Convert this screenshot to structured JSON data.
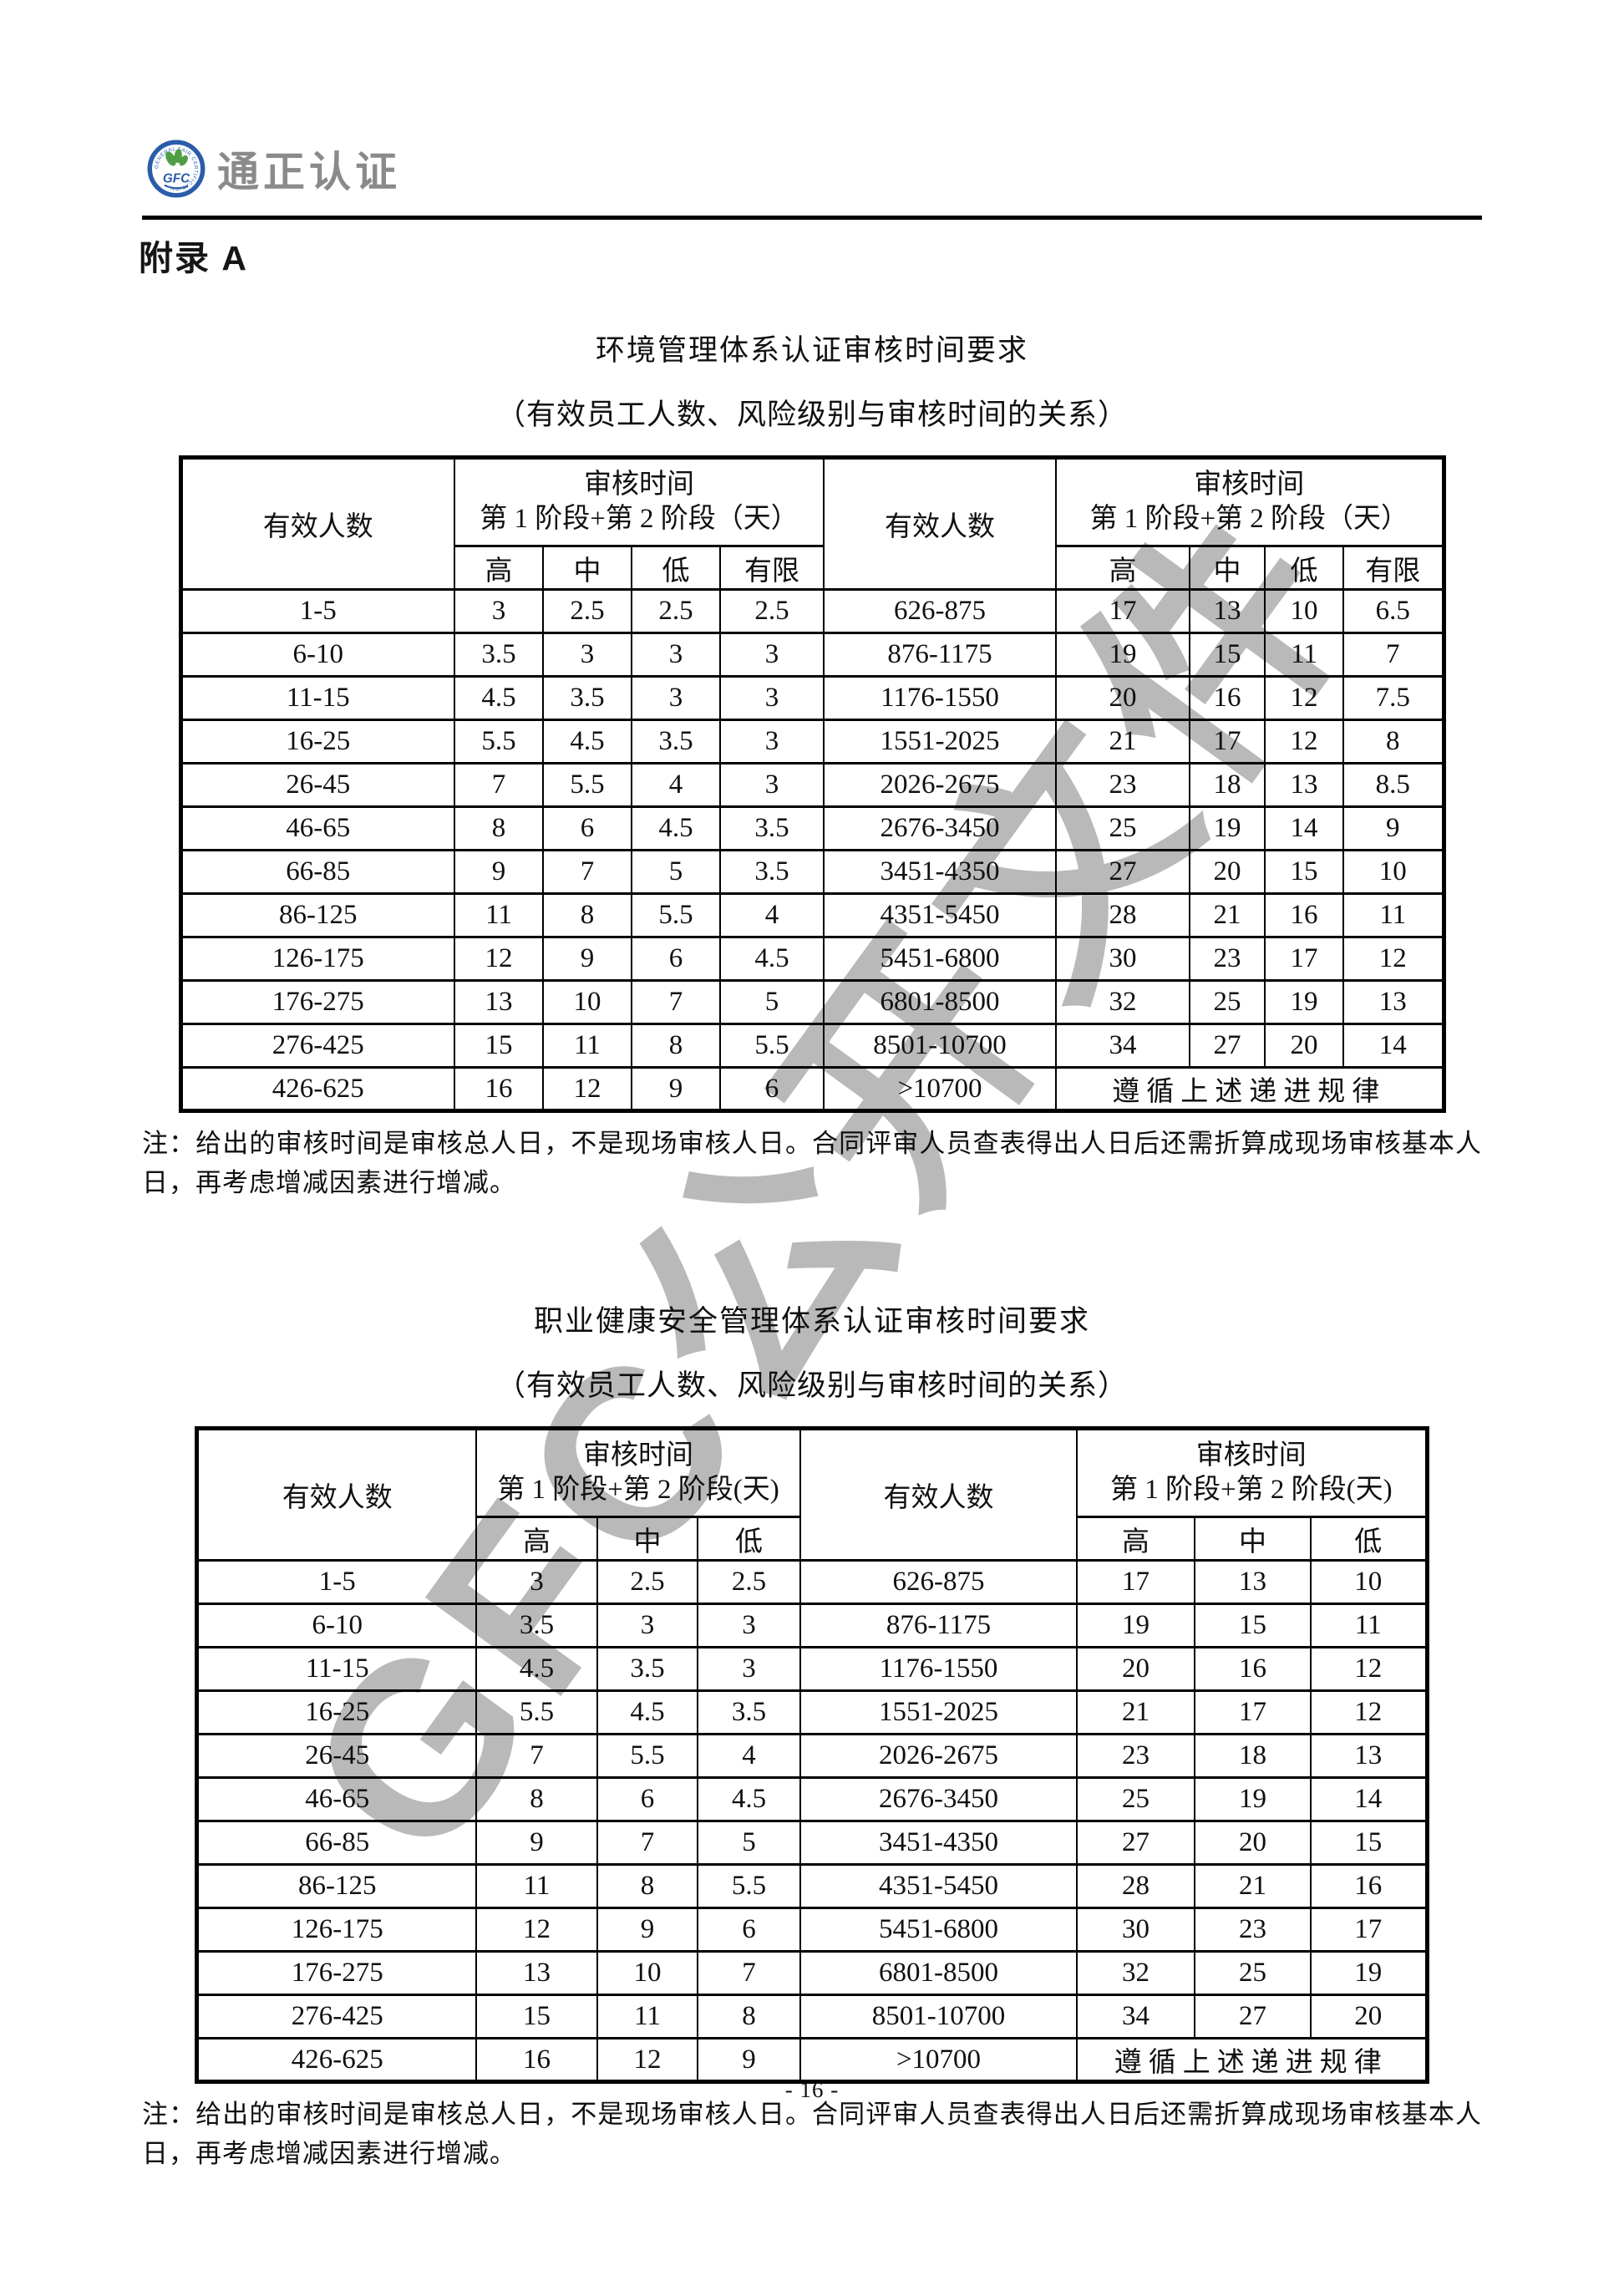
{
  "page": {
    "appendix_heading": "附录 A",
    "page_number": "- 16 -"
  },
  "logo": {
    "brand_text": "通正认证",
    "ring_text": "GENERAL FAIR CERTIFICATION",
    "monogram": "GFC",
    "ring_color": "#2a5caa",
    "leaf_color": "#4f9e45",
    "brand_color": "#8a8a8a"
  },
  "watermark": {
    "text": "GFC公开文件"
  },
  "tables": [
    {
      "title": "环境管理体系认证审核时间要求",
      "subtitle": "（有效员工人数、风险级别与审核时间的关系）",
      "people_header": "有效人数",
      "audit_header_line1": "审核时间",
      "audit_header_line2": "第 1 阶段+第 2 阶段（天）",
      "levels": [
        "高",
        "中",
        "低",
        "有限"
      ],
      "left_rows": [
        {
          "range": "1-5",
          "values": [
            "3",
            "2.5",
            "2.5",
            "2.5"
          ]
        },
        {
          "range": "6-10",
          "values": [
            "3.5",
            "3",
            "3",
            "3"
          ]
        },
        {
          "range": "11-15",
          "values": [
            "4.5",
            "3.5",
            "3",
            "3"
          ]
        },
        {
          "range": "16-25",
          "values": [
            "5.5",
            "4.5",
            "3.5",
            "3"
          ]
        },
        {
          "range": "26-45",
          "values": [
            "7",
            "5.5",
            "4",
            "3"
          ]
        },
        {
          "range": "46-65",
          "values": [
            "8",
            "6",
            "4.5",
            "3.5"
          ]
        },
        {
          "range": "66-85",
          "values": [
            "9",
            "7",
            "5",
            "3.5"
          ]
        },
        {
          "range": "86-125",
          "values": [
            "11",
            "8",
            "5.5",
            "4"
          ]
        },
        {
          "range": "126-175",
          "values": [
            "12",
            "9",
            "6",
            "4.5"
          ]
        },
        {
          "range": "176-275",
          "values": [
            "13",
            "10",
            "7",
            "5"
          ]
        },
        {
          "range": "276-425",
          "values": [
            "15",
            "11",
            "8",
            "5.5"
          ]
        },
        {
          "range": "426-625",
          "values": [
            "16",
            "12",
            "9",
            "6"
          ]
        }
      ],
      "right_rows": [
        {
          "range": "626-875",
          "values": [
            "17",
            "13",
            "10",
            "6.5"
          ]
        },
        {
          "range": "876-1175",
          "values": [
            "19",
            "15",
            "11",
            "7"
          ]
        },
        {
          "range": "1176-1550",
          "values": [
            "20",
            "16",
            "12",
            "7.5"
          ]
        },
        {
          "range": "1551-2025",
          "values": [
            "21",
            "17",
            "12",
            "8"
          ]
        },
        {
          "range": "2026-2675",
          "values": [
            "23",
            "18",
            "13",
            "8.5"
          ]
        },
        {
          "range": "2676-3450",
          "values": [
            "25",
            "19",
            "14",
            "9"
          ]
        },
        {
          "range": "3451-4350",
          "values": [
            "27",
            "20",
            "15",
            "10"
          ]
        },
        {
          "range": "4351-5450",
          "values": [
            "28",
            "21",
            "16",
            "11"
          ]
        },
        {
          "range": "5451-6800",
          "values": [
            "30",
            "23",
            "17",
            "12"
          ]
        },
        {
          "range": "6801-8500",
          "values": [
            "32",
            "25",
            "19",
            "13"
          ]
        },
        {
          "range": "8501-10700",
          "values": [
            "34",
            "27",
            "20",
            "14"
          ]
        },
        {
          "range": ">10700",
          "span_text": "遵循上述递进规律"
        }
      ],
      "note": "注：给出的审核时间是审核总人日，不是现场审核人日。合同评审人员查表得出人日后还需折算成现场审核基本人日，再考虑增减因素进行增减。"
    },
    {
      "title": "职业健康安全管理体系认证审核时间要求",
      "subtitle": "（有效员工人数、风险级别与审核时间的关系）",
      "people_header": "有效人数",
      "audit_header_line1": "审核时间",
      "audit_header_line2": "第 1 阶段+第 2 阶段(天)",
      "levels": [
        "高",
        "中",
        "低"
      ],
      "left_rows": [
        {
          "range": "1-5",
          "values": [
            "3",
            "2.5",
            "2.5"
          ]
        },
        {
          "range": "6-10",
          "values": [
            "3.5",
            "3",
            "3"
          ]
        },
        {
          "range": "11-15",
          "values": [
            "4.5",
            "3.5",
            "3"
          ]
        },
        {
          "range": "16-25",
          "values": [
            "5.5",
            "4.5",
            "3.5"
          ]
        },
        {
          "range": "26-45",
          "values": [
            "7",
            "5.5",
            "4"
          ]
        },
        {
          "range": "46-65",
          "values": [
            "8",
            "6",
            "4.5"
          ]
        },
        {
          "range": "66-85",
          "values": [
            "9",
            "7",
            "5"
          ]
        },
        {
          "range": "86-125",
          "values": [
            "11",
            "8",
            "5.5"
          ]
        },
        {
          "range": "126-175",
          "values": [
            "12",
            "9",
            "6"
          ]
        },
        {
          "range": "176-275",
          "values": [
            "13",
            "10",
            "7"
          ]
        },
        {
          "range": "276-425",
          "values": [
            "15",
            "11",
            "8"
          ]
        },
        {
          "range": "426-625",
          "values": [
            "16",
            "12",
            "9"
          ]
        }
      ],
      "right_rows": [
        {
          "range": "626-875",
          "values": [
            "17",
            "13",
            "10"
          ]
        },
        {
          "range": "876-1175",
          "values": [
            "19",
            "15",
            "11"
          ]
        },
        {
          "range": "1176-1550",
          "values": [
            "20",
            "16",
            "12"
          ]
        },
        {
          "range": "1551-2025",
          "values": [
            "21",
            "17",
            "12"
          ]
        },
        {
          "range": "2026-2675",
          "values": [
            "23",
            "18",
            "13"
          ]
        },
        {
          "range": "2676-3450",
          "values": [
            "25",
            "19",
            "14"
          ]
        },
        {
          "range": "3451-4350",
          "values": [
            "27",
            "20",
            "15"
          ]
        },
        {
          "range": "4351-5450",
          "values": [
            "28",
            "21",
            "16"
          ]
        },
        {
          "range": "5451-6800",
          "values": [
            "30",
            "23",
            "17"
          ]
        },
        {
          "range": "6801-8500",
          "values": [
            "32",
            "25",
            "19"
          ]
        },
        {
          "range": "8501-10700",
          "values": [
            "34",
            "27",
            "20"
          ]
        },
        {
          "range": ">10700",
          "span_text": "遵循上述递进规律"
        }
      ],
      "note": "注：给出的审核时间是审核总人日，不是现场审核人日。合同评审人员查表得出人日后还需折算成现场审核基本人日，再考虑增减因素进行增减。"
    }
  ]
}
